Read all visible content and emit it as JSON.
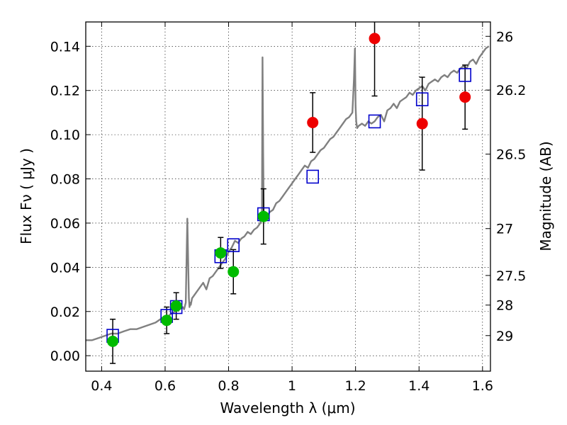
{
  "chart_data": {
    "type": "scatter",
    "xlabel": "Wavelength  λ (μm)",
    "ylabel": "Flux  Fν  ( μJy )",
    "y2label": "Magnitude (AB)",
    "xlim": [
      0.35,
      1.625
    ],
    "ylim": [
      -0.007,
      0.151
    ],
    "grid": true,
    "x_ticks": [
      {
        "value": 0.4,
        "label": "0.4"
      },
      {
        "value": 0.6,
        "label": "0.6"
      },
      {
        "value": 0.8,
        "label": "0.8"
      },
      {
        "value": 1.0,
        "label": "1"
      },
      {
        "value": 1.2,
        "label": "1.2"
      },
      {
        "value": 1.4,
        "label": "1.4"
      },
      {
        "value": 1.6,
        "label": "1.6"
      }
    ],
    "y_ticks": [
      {
        "value": 0.0,
        "label": "0.00"
      },
      {
        "value": 0.02,
        "label": "0.02"
      },
      {
        "value": 0.04,
        "label": "0.04"
      },
      {
        "value": 0.06,
        "label": "0.06"
      },
      {
        "value": 0.08,
        "label": "0.08"
      },
      {
        "value": 0.1,
        "label": "0.10"
      },
      {
        "value": 0.12,
        "label": "0.12"
      },
      {
        "value": 0.14,
        "label": "0.14"
      }
    ],
    "y2_ticks": [
      {
        "flux": 0.1445,
        "label": "26"
      },
      {
        "flux": 0.1202,
        "label": "26.2"
      },
      {
        "flux": 0.0912,
        "label": "26.5"
      },
      {
        "flux": 0.0575,
        "label": "27"
      },
      {
        "flux": 0.0363,
        "label": "27.5"
      },
      {
        "flux": 0.0229,
        "label": "28"
      },
      {
        "flux": 0.0091,
        "label": "29"
      }
    ],
    "model_spectrum": {
      "color": "#808080",
      "x": [
        0.35,
        0.37,
        0.39,
        0.41,
        0.43,
        0.45,
        0.47,
        0.49,
        0.51,
        0.53,
        0.55,
        0.57,
        0.59,
        0.61,
        0.63,
        0.645,
        0.655,
        0.66,
        0.665,
        0.67,
        0.675,
        0.677,
        0.679,
        0.681,
        0.685,
        0.69,
        0.7,
        0.71,
        0.72,
        0.73,
        0.74,
        0.75,
        0.76,
        0.77,
        0.78,
        0.79,
        0.8,
        0.81,
        0.82,
        0.83,
        0.84,
        0.85,
        0.86,
        0.87,
        0.88,
        0.89,
        0.9,
        0.905,
        0.907,
        0.909,
        0.911,
        0.913,
        0.915,
        0.92,
        0.93,
        0.94,
        0.95,
        0.96,
        0.97,
        0.98,
        0.99,
        1.0,
        1.01,
        1.02,
        1.03,
        1.04,
        1.05,
        1.06,
        1.07,
        1.08,
        1.09,
        1.1,
        1.11,
        1.12,
        1.13,
        1.14,
        1.15,
        1.16,
        1.17,
        1.18,
        1.19,
        1.195,
        1.198,
        1.2,
        1.202,
        1.205,
        1.21,
        1.22,
        1.23,
        1.24,
        1.25,
        1.26,
        1.27,
        1.28,
        1.29,
        1.3,
        1.31,
        1.32,
        1.33,
        1.34,
        1.35,
        1.36,
        1.37,
        1.38,
        1.39,
        1.4,
        1.41,
        1.42,
        1.43,
        1.44,
        1.45,
        1.46,
        1.47,
        1.48,
        1.49,
        1.5,
        1.51,
        1.52,
        1.53,
        1.54,
        1.55,
        1.56,
        1.57,
        1.58,
        1.59,
        1.6,
        1.61,
        1.62
      ],
      "y": [
        0.007,
        0.007,
        0.008,
        0.009,
        0.01,
        0.01,
        0.011,
        0.012,
        0.012,
        0.013,
        0.014,
        0.015,
        0.017,
        0.018,
        0.02,
        0.021,
        0.022,
        0.021,
        0.024,
        0.062,
        0.026,
        0.022,
        0.024,
        0.023,
        0.026,
        0.027,
        0.029,
        0.031,
        0.033,
        0.03,
        0.035,
        0.036,
        0.038,
        0.04,
        0.042,
        0.044,
        0.047,
        0.049,
        0.052,
        0.051,
        0.053,
        0.054,
        0.056,
        0.055,
        0.057,
        0.058,
        0.06,
        0.064,
        0.135,
        0.092,
        0.062,
        0.064,
        0.063,
        0.063,
        0.065,
        0.066,
        0.069,
        0.07,
        0.072,
        0.074,
        0.076,
        0.078,
        0.08,
        0.082,
        0.084,
        0.086,
        0.085,
        0.088,
        0.089,
        0.091,
        0.093,
        0.094,
        0.096,
        0.098,
        0.099,
        0.101,
        0.103,
        0.105,
        0.107,
        0.108,
        0.11,
        0.125,
        0.139,
        0.113,
        0.106,
        0.103,
        0.104,
        0.105,
        0.104,
        0.106,
        0.105,
        0.106,
        0.108,
        0.109,
        0.106,
        0.111,
        0.112,
        0.114,
        0.112,
        0.115,
        0.116,
        0.117,
        0.119,
        0.118,
        0.12,
        0.121,
        0.122,
        0.12,
        0.123,
        0.124,
        0.125,
        0.124,
        0.126,
        0.127,
        0.126,
        0.128,
        0.129,
        0.128,
        0.13,
        0.131,
        0.13,
        0.133,
        0.134,
        0.132,
        0.135,
        0.137,
        0.139,
        0.14
      ]
    },
    "series": [
      {
        "marker": "square-open",
        "color": "#0000cc",
        "x": [
          0.435,
          0.605,
          0.635,
          0.775,
          0.815,
          0.91,
          1.065,
          1.26,
          1.41,
          1.545
        ],
        "y": [
          0.009,
          0.018,
          0.022,
          0.045,
          0.05,
          0.064,
          0.081,
          0.106,
          0.116,
          0.127
        ]
      },
      {
        "marker": "circle",
        "color": "#00bb00",
        "x": [
          0.435,
          0.605,
          0.635,
          0.775,
          0.815,
          0.91
        ],
        "y": [
          0.0065,
          0.016,
          0.0225,
          0.0465,
          0.038,
          0.063
        ],
        "yerr": [
          0.01,
          0.006,
          0.006,
          0.007,
          0.01,
          0.0125
        ]
      },
      {
        "marker": "circle",
        "color": "#ee0000",
        "x": [
          1.065,
          1.26,
          1.41,
          1.545
        ],
        "y": [
          0.1055,
          0.1435,
          0.105,
          0.117
        ],
        "yerr": [
          0.0135,
          0.026,
          0.021,
          0.0145
        ]
      }
    ]
  }
}
